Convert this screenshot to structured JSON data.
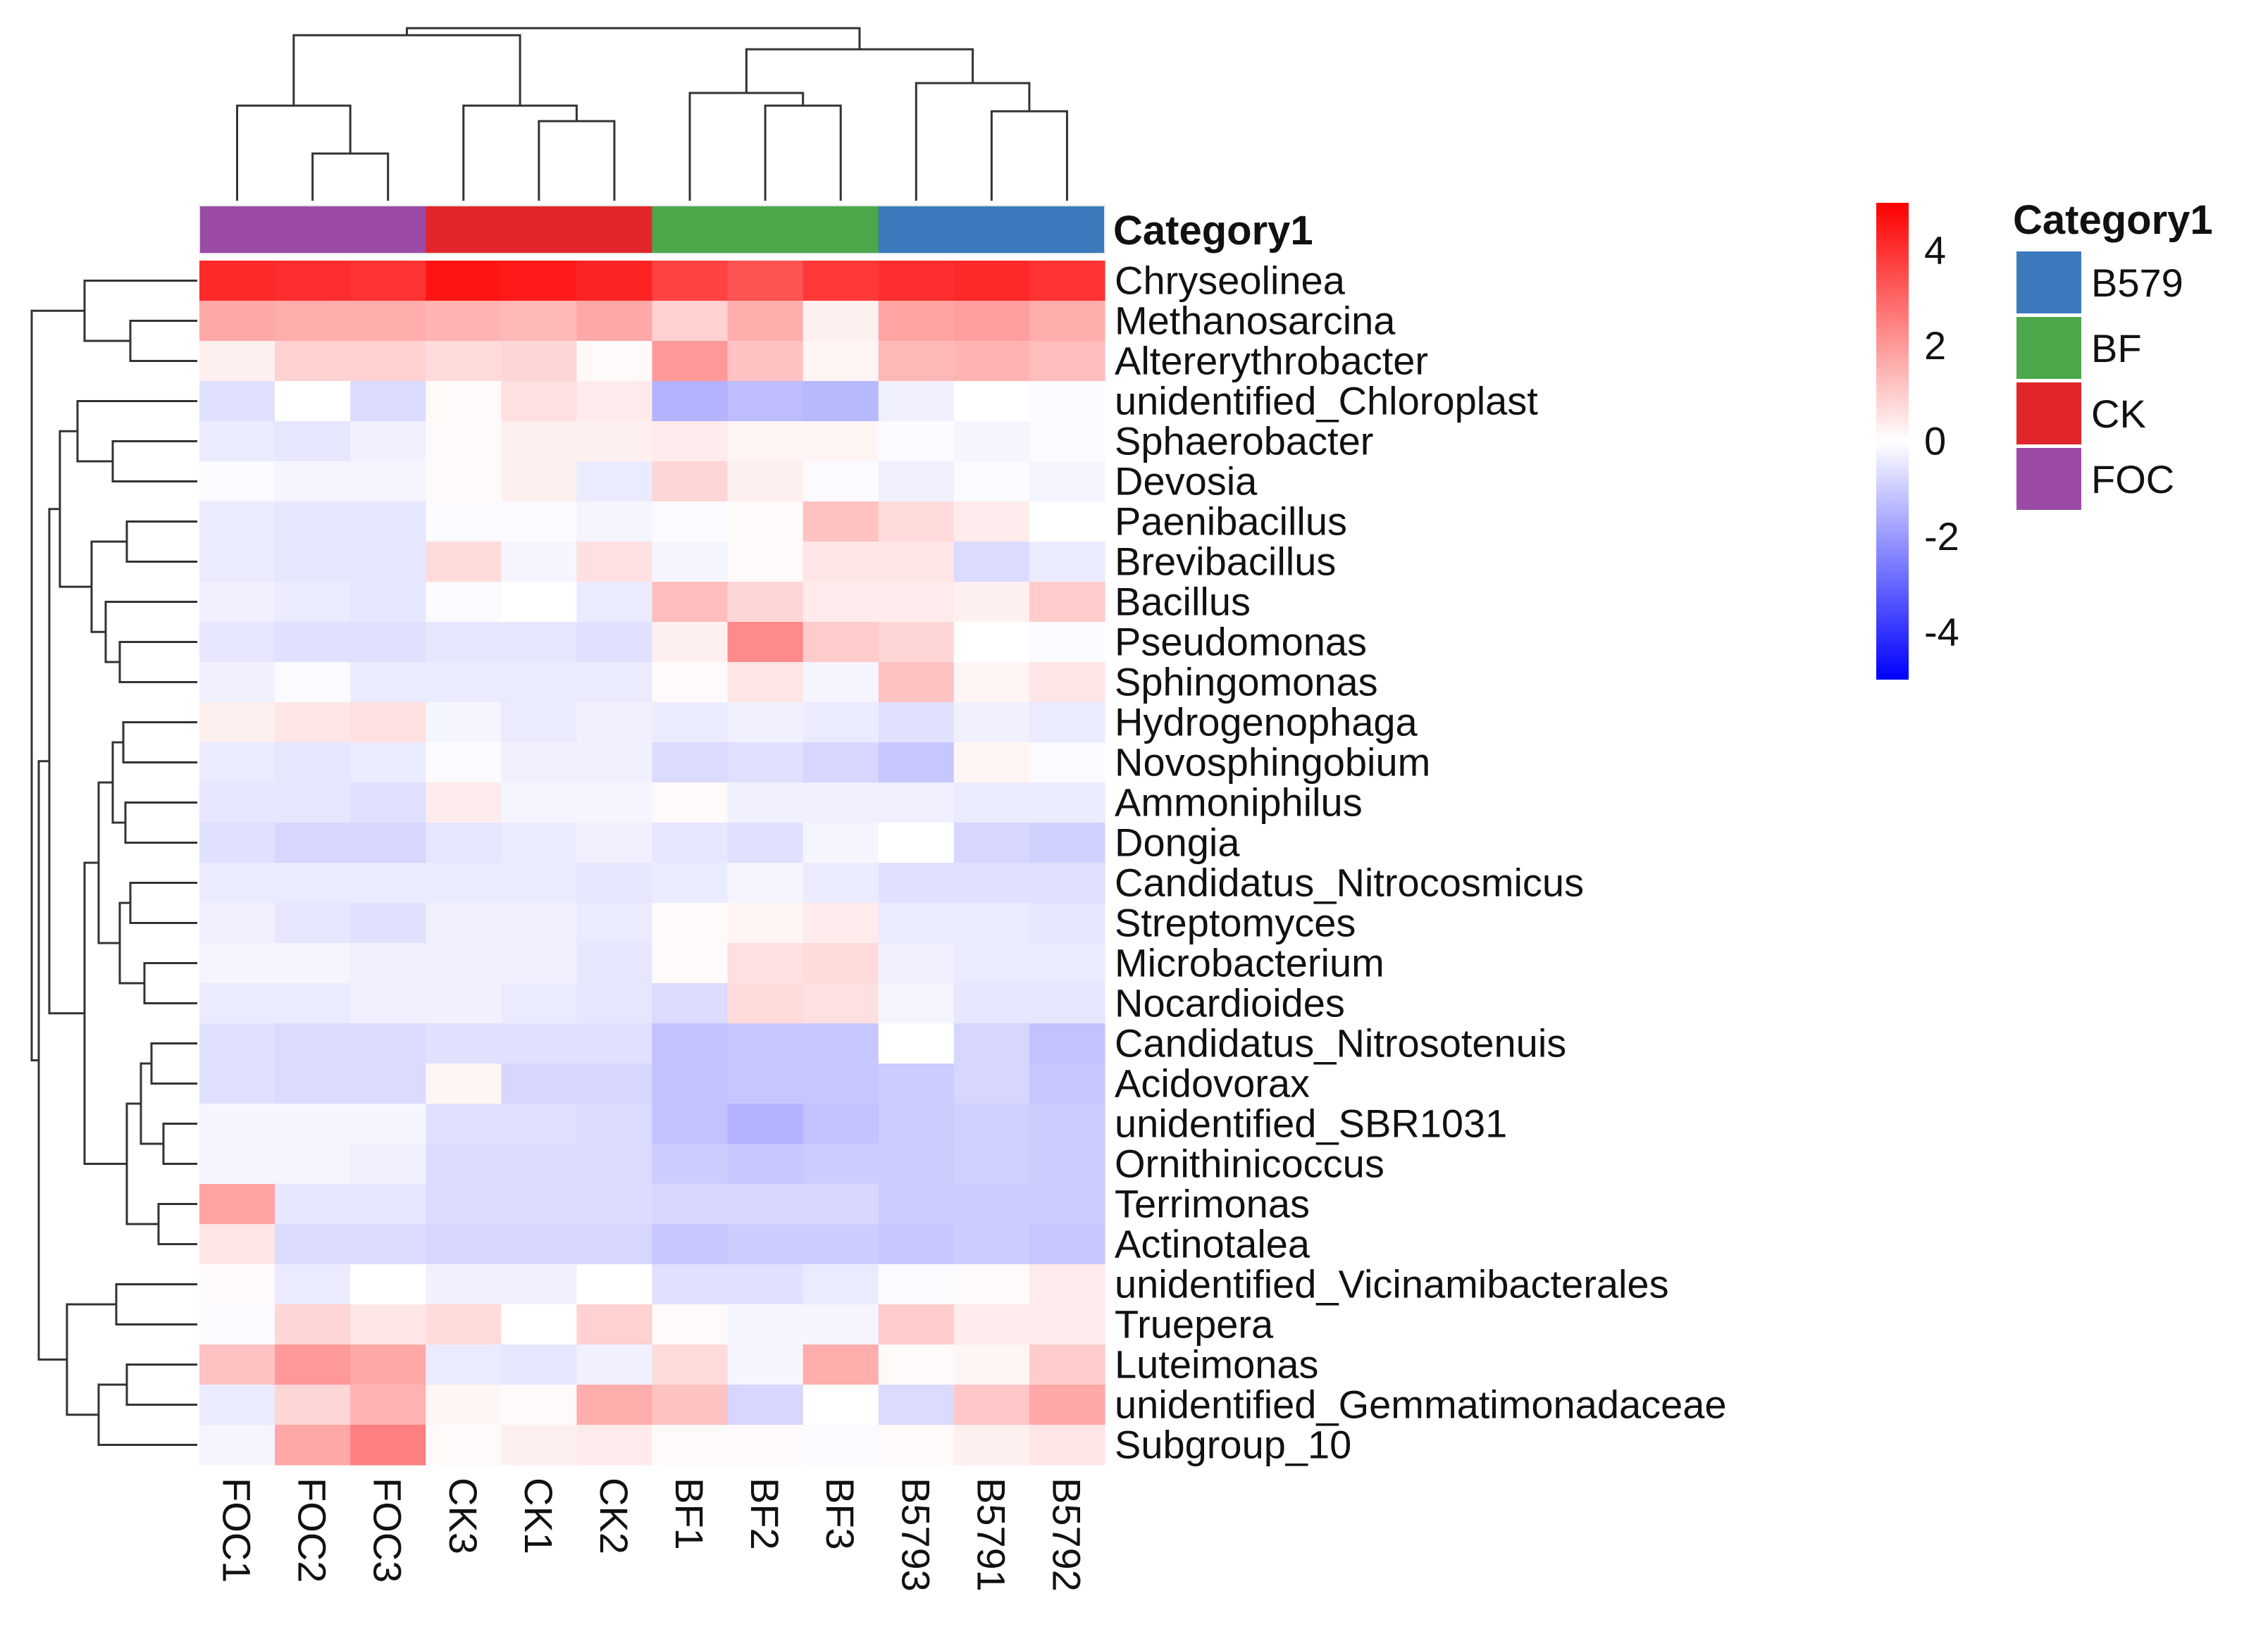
{
  "chart_data": {
    "type": "heatmap",
    "title": "",
    "annotation_title": "Category1",
    "columns": [
      "FOC1",
      "FOC2",
      "FOC3",
      "CK3",
      "CK1",
      "CK2",
      "BF1",
      "BF2",
      "BF3",
      "B5793",
      "B5791",
      "B5792"
    ],
    "column_groups": [
      "FOC",
      "FOC",
      "FOC",
      "CK",
      "CK",
      "CK",
      "BF",
      "BF",
      "BF",
      "B579",
      "B579",
      "B579"
    ],
    "rows": [
      "Chryseolinea",
      "Methanosarcina",
      "Altererythrobacter",
      "unidentified_Chloroplast",
      "Sphaerobacter",
      "Devosia",
      "Paenibacillus",
      "Brevibacillus",
      "Bacillus",
      "Pseudomonas",
      "Sphingomonas",
      "Hydrogenophaga",
      "Novosphingobium",
      "Ammoniphilus",
      "Dongia",
      "Candidatus_Nitrocosmicus",
      "Streptomyces",
      "Microbacterium",
      "Nocardioides",
      "Candidatus_Nitrosotenuis",
      "Acidovorax",
      "unidentified_SBR1031",
      "Ornithinicoccus",
      "Terrimonas",
      "Actinotalea",
      "unidentified_Vicinamibacterales",
      "Truepera",
      "Luteimonas",
      "unidentified_Gemmatimonadaceae",
      "Subgroup_10"
    ],
    "values": [
      [
        4.2,
        4.1,
        4.0,
        4.6,
        4.5,
        4.3,
        3.7,
        3.4,
        3.9,
        4.1,
        4.2,
        4.0
      ],
      [
        1.7,
        1.6,
        1.6,
        1.5,
        1.4,
        1.7,
        0.9,
        1.6,
        0.3,
        1.8,
        1.9,
        1.6
      ],
      [
        0.3,
        0.9,
        0.9,
        0.7,
        0.8,
        0.1,
        2.0,
        1.2,
        0.2,
        1.4,
        1.5,
        1.3
      ],
      [
        -0.6,
        0.0,
        -0.7,
        0.1,
        0.6,
        0.4,
        -1.5,
        -1.3,
        -1.4,
        -0.3,
        0.0,
        -0.1
      ],
      [
        -0.4,
        -0.5,
        -0.3,
        0.1,
        0.3,
        0.3,
        0.4,
        0.2,
        0.2,
        -0.1,
        -0.2,
        -0.1
      ],
      [
        -0.1,
        -0.2,
        -0.2,
        0.1,
        0.3,
        -0.4,
        0.8,
        0.3,
        -0.1,
        -0.3,
        -0.1,
        -0.2
      ],
      [
        -0.4,
        -0.5,
        -0.5,
        -0.1,
        -0.1,
        -0.2,
        -0.1,
        0.1,
        1.2,
        0.7,
        0.4,
        0.0
      ],
      [
        -0.4,
        -0.5,
        -0.5,
        0.7,
        -0.2,
        0.6,
        -0.2,
        0.1,
        0.5,
        0.5,
        -0.7,
        -0.4
      ],
      [
        -0.3,
        -0.4,
        -0.5,
        -0.1,
        0.0,
        -0.4,
        1.3,
        0.8,
        0.4,
        0.4,
        0.3,
        1.0
      ],
      [
        -0.5,
        -0.6,
        -0.6,
        -0.5,
        -0.5,
        -0.6,
        0.3,
        2.3,
        1.0,
        0.8,
        0.0,
        -0.1
      ],
      [
        -0.3,
        -0.1,
        -0.4,
        -0.4,
        -0.4,
        -0.4,
        0.1,
        0.5,
        -0.2,
        1.2,
        0.2,
        0.5
      ],
      [
        0.3,
        0.5,
        0.6,
        -0.2,
        -0.4,
        -0.3,
        -0.4,
        -0.3,
        -0.4,
        -0.6,
        -0.3,
        -0.4
      ],
      [
        -0.4,
        -0.5,
        -0.4,
        -0.1,
        -0.3,
        -0.3,
        -0.7,
        -0.6,
        -0.8,
        -1.1,
        0.2,
        -0.1
      ],
      [
        -0.5,
        -0.5,
        -0.6,
        0.4,
        -0.2,
        -0.2,
        0.1,
        -0.3,
        -0.3,
        -0.3,
        -0.4,
        -0.4
      ],
      [
        -0.6,
        -0.8,
        -0.8,
        -0.5,
        -0.4,
        -0.3,
        -0.5,
        -0.6,
        -0.2,
        0.0,
        -0.8,
        -0.9
      ],
      [
        -0.4,
        -0.4,
        -0.4,
        -0.4,
        -0.4,
        -0.5,
        -0.4,
        -0.2,
        -0.4,
        -0.6,
        -0.6,
        -0.6
      ],
      [
        -0.3,
        -0.5,
        -0.6,
        -0.3,
        -0.3,
        -0.4,
        0.1,
        0.2,
        0.4,
        -0.4,
        -0.4,
        -0.5
      ],
      [
        -0.2,
        -0.2,
        -0.3,
        -0.3,
        -0.3,
        -0.5,
        0.1,
        0.6,
        0.7,
        -0.3,
        -0.4,
        -0.4
      ],
      [
        -0.4,
        -0.4,
        -0.3,
        -0.3,
        -0.4,
        -0.5,
        -0.7,
        0.7,
        0.6,
        -0.2,
        -0.5,
        -0.5
      ],
      [
        -0.6,
        -0.7,
        -0.7,
        -0.6,
        -0.6,
        -0.6,
        -1.2,
        -1.1,
        -1.1,
        0.0,
        -0.8,
        -1.2
      ],
      [
        -0.6,
        -0.7,
        -0.7,
        0.2,
        -0.8,
        -0.8,
        -1.2,
        -1.1,
        -1.1,
        -1.0,
        -0.8,
        -1.1
      ],
      [
        -0.2,
        -0.2,
        -0.2,
        -0.6,
        -0.6,
        -0.7,
        -1.2,
        -1.5,
        -1.2,
        -1.0,
        -0.9,
        -1.0
      ],
      [
        -0.2,
        -0.2,
        -0.3,
        -0.7,
        -0.7,
        -0.7,
        -1.0,
        -1.1,
        -1.0,
        -1.0,
        -0.9,
        -1.0
      ],
      [
        1.8,
        -0.5,
        -0.5,
        -0.7,
        -0.7,
        -0.7,
        -0.8,
        -0.8,
        -0.8,
        -1.0,
        -1.0,
        -1.0
      ],
      [
        0.5,
        -0.7,
        -0.7,
        -0.8,
        -0.8,
        -0.8,
        -1.1,
        -1.0,
        -1.0,
        -1.1,
        -1.0,
        -1.1
      ],
      [
        0.1,
        -0.4,
        0.0,
        -0.3,
        -0.3,
        0.0,
        -0.6,
        -0.6,
        -0.4,
        -0.1,
        0.1,
        0.4
      ],
      [
        -0.1,
        0.8,
        0.5,
        0.7,
        0.0,
        0.9,
        0.1,
        -0.2,
        -0.2,
        1.0,
        0.4,
        0.4
      ],
      [
        1.2,
        2.0,
        1.7,
        -0.4,
        -0.5,
        -0.3,
        0.7,
        -0.2,
        1.6,
        0.1,
        0.2,
        1.0
      ],
      [
        -0.4,
        0.8,
        1.5,
        0.2,
        0.1,
        1.6,
        1.2,
        -0.8,
        0.0,
        -0.7,
        1.1,
        1.7
      ],
      [
        -0.2,
        1.7,
        2.5,
        0.1,
        0.3,
        0.4,
        0.1,
        0.1,
        -0.1,
        0.1,
        0.3,
        0.5
      ]
    ],
    "color_scale": {
      "min": -5,
      "max": 5,
      "low": "#0000ff",
      "mid": "#ffffff",
      "high": "#ff0000"
    },
    "colorbar_ticks": [
      "4",
      "2",
      "0",
      "-2",
      "-4"
    ],
    "colorbar_tick_values": [
      4,
      2,
      0,
      -2,
      -4
    ],
    "legend": {
      "title": "Category1",
      "placement": "right",
      "entries": [
        {
          "label": "B579",
          "color": "#3a7abd"
        },
        {
          "label": "BF",
          "color": "#4aa84a"
        },
        {
          "label": "CK",
          "color": "#e0262a"
        },
        {
          "label": "FOC",
          "color": "#9b4aa6"
        }
      ]
    }
  }
}
